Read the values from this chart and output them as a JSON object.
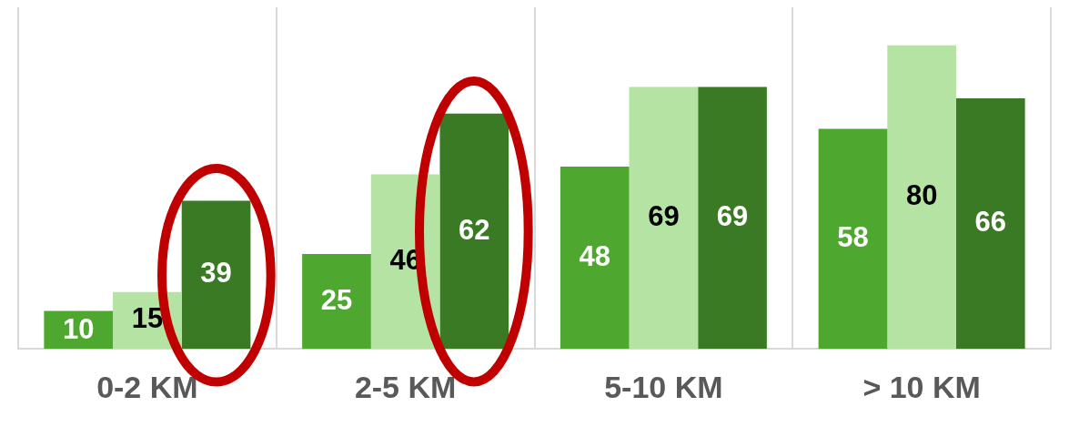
{
  "chart_data": {
    "type": "bar",
    "categories": [
      "0-2 KM",
      "2-5 KM",
      "5-10 KM",
      "> 10 KM"
    ],
    "series": [
      {
        "color": "#4ea72e",
        "values": [
          10,
          25,
          48,
          58
        ]
      },
      {
        "color": "#b5e3a4",
        "values": [
          15,
          46,
          69,
          80
        ]
      },
      {
        "color": "#3b7a24",
        "values": [
          39,
          62,
          69,
          66
        ]
      }
    ],
    "ylim": [
      0,
      90
    ],
    "tick_labels": "x",
    "grid": "x",
    "legend": false,
    "data_labels": true
  }
}
